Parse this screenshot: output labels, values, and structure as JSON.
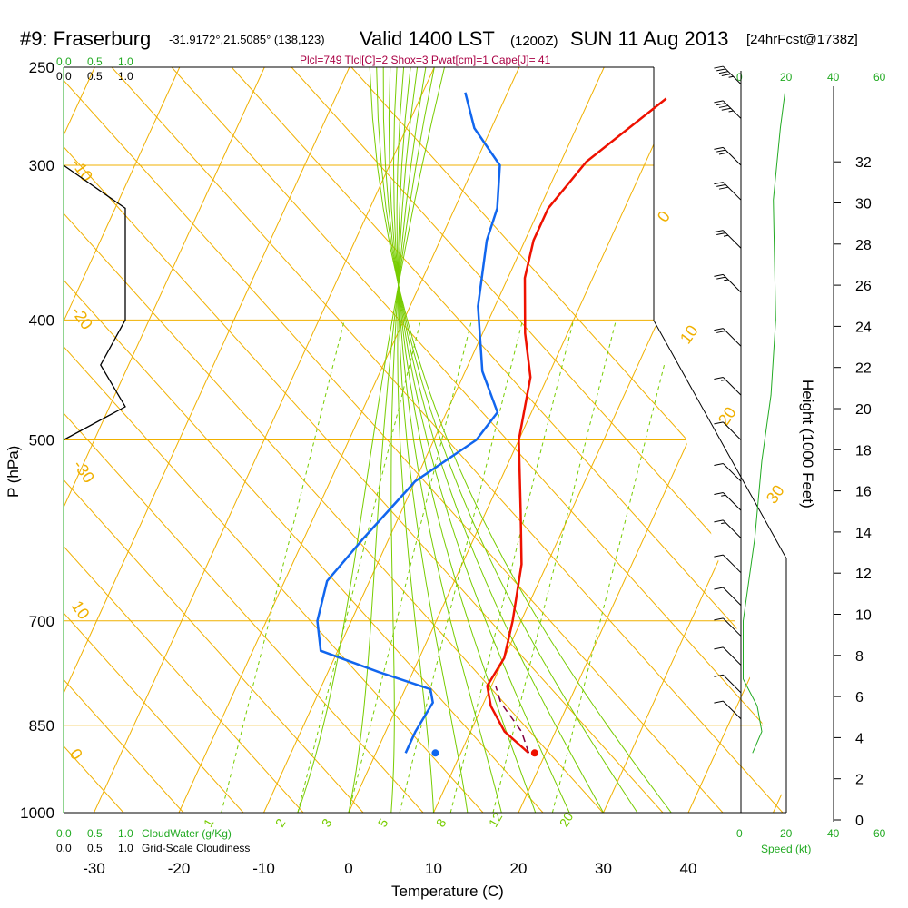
{
  "header": {
    "station": "#9: Fraserburg",
    "coords": "-31.9172°,21.5085° (138,123)",
    "valid": "Valid 1400 LST",
    "utc": "(1200Z)",
    "date": "SUN 11 Aug 2013",
    "forecast": "[24hrFcst@1738z]"
  },
  "indices": "Plcl=749 Tlcl[C]=2 Shox=3 Pwat[cm]=1 Cape[J]= 41",
  "left_scale": {
    "cloudwater_ticks": [
      "0.0",
      "0.5",
      "1.0"
    ],
    "cloudiness_ticks": [
      "0.0",
      "0.5",
      "1.0"
    ],
    "cloudwater_label": "CloudWater (g/Kg)",
    "cloudiness_label": "Grid-Scale Cloudiness"
  },
  "wind_scale": {
    "ticks": [
      "0",
      "20",
      "40",
      "60"
    ],
    "label": "Speed (kt)"
  },
  "colors": {
    "isotherm": "#f0b000",
    "mixing_ratio": "#77cc00",
    "temperature": "#ee1100",
    "dewpoint": "#1166ee",
    "parcel": "#800040",
    "speed": "#22aa22",
    "indices": "#aa0044"
  },
  "chart_data": {
    "type": "line",
    "xlabel": "Temperature (C)",
    "ylabel": "P (hPa)",
    "height_label": "Height (1000 Feet)",
    "x_ticks": [
      "-30",
      "-20",
      "-10",
      "0",
      "10",
      "20",
      "30",
      "40"
    ],
    "y_ticks": [
      "250",
      "300",
      "400",
      "500",
      "700",
      "850",
      "1000"
    ],
    "height_ticks": [
      "0",
      "2",
      "4",
      "6",
      "8",
      "10",
      "12",
      "14",
      "16",
      "18",
      "20",
      "22",
      "24",
      "26",
      "28",
      "30",
      "32"
    ],
    "pressure_range": [
      1000,
      250
    ],
    "temperature_range": [
      -34,
      36
    ],
    "log_pressure": true,
    "isotherm_labels": [
      "0",
      "10",
      "20",
      "30",
      "-10",
      "-20",
      "-30",
      "10",
      "0"
    ],
    "mixing_ratio_labels": [
      "1",
      "2",
      "3",
      "5",
      "8",
      "12",
      "20"
    ],
    "series": [
      {
        "name": "Temperature",
        "points": [
          [
            -1,
            265
          ],
          [
            -7,
            298
          ],
          [
            -9,
            325
          ],
          [
            -9,
            345
          ],
          [
            -8,
            370
          ],
          [
            -5,
            410
          ],
          [
            -2,
            445
          ],
          [
            0,
            500
          ],
          [
            4,
            570
          ],
          [
            7,
            630
          ],
          [
            9,
            700
          ],
          [
            10,
            750
          ],
          [
            9.5,
            790
          ],
          [
            11,
            820
          ],
          [
            14,
            860
          ],
          [
            18,
            895
          ]
        ]
      },
      {
        "name": "Dewpoint",
        "points": [
          [
            -25,
            262
          ],
          [
            -22,
            280
          ],
          [
            -17,
            300
          ],
          [
            -15,
            325
          ],
          [
            -14.5,
            345
          ],
          [
            -12,
            390
          ],
          [
            -8,
            440
          ],
          [
            -4,
            475
          ],
          [
            -5,
            500
          ],
          [
            -10,
            540
          ],
          [
            -13,
            600
          ],
          [
            -15,
            650
          ],
          [
            -14,
            700
          ],
          [
            -12,
            740
          ],
          [
            -4,
            770
          ],
          [
            3,
            795
          ],
          [
            4,
            815
          ],
          [
            3.5,
            860
          ],
          [
            3.5,
            895
          ]
        ]
      },
      {
        "name": "Parcel",
        "points": [
          [
            18,
            895
          ],
          [
            16,
            860
          ],
          [
            12,
            815
          ],
          [
            10.5,
            790
          ]
        ]
      },
      {
        "name": "Cloudiness",
        "points": [
          [
            0,
            300
          ],
          [
            1,
            325
          ],
          [
            1,
            400
          ],
          [
            0.6,
            435
          ],
          [
            1,
            470
          ],
          [
            0,
            500
          ]
        ]
      },
      {
        "name": "Speed",
        "points": [
          [
            5,
            895
          ],
          [
            9,
            860
          ],
          [
            7,
            820
          ],
          [
            1,
            780
          ],
          [
            1,
            700
          ],
          [
            6,
            600
          ],
          [
            9,
            520
          ],
          [
            13,
            460
          ],
          [
            15,
            400
          ],
          [
            14,
            320
          ],
          [
            17,
            280
          ],
          [
            19,
            262
          ]
        ]
      }
    ],
    "surface_points": [
      {
        "name": "Surface temperature",
        "t": 18.7,
        "p": 895
      },
      {
        "name": "Surface dewpoint",
        "t": 7,
        "p": 895
      }
    ],
    "wind_barbs": [
      {
        "p": 258,
        "spd": 45
      },
      {
        "p": 275,
        "spd": 45
      },
      {
        "p": 300,
        "spd": 30
      },
      {
        "p": 320,
        "spd": 30
      },
      {
        "p": 350,
        "spd": 25
      },
      {
        "p": 380,
        "spd": 25
      },
      {
        "p": 420,
        "spd": 20
      },
      {
        "p": 460,
        "spd": 15
      },
      {
        "p": 500,
        "spd": 10
      },
      {
        "p": 540,
        "spd": 10
      },
      {
        "p": 570,
        "spd": 15
      },
      {
        "p": 600,
        "spd": 15
      },
      {
        "p": 640,
        "spd": 10
      },
      {
        "p": 680,
        "spd": 10
      },
      {
        "p": 720,
        "spd": 10
      },
      {
        "p": 760,
        "spd": 10
      },
      {
        "p": 800,
        "spd": 10
      },
      {
        "p": 840,
        "spd": 10
      }
    ]
  }
}
